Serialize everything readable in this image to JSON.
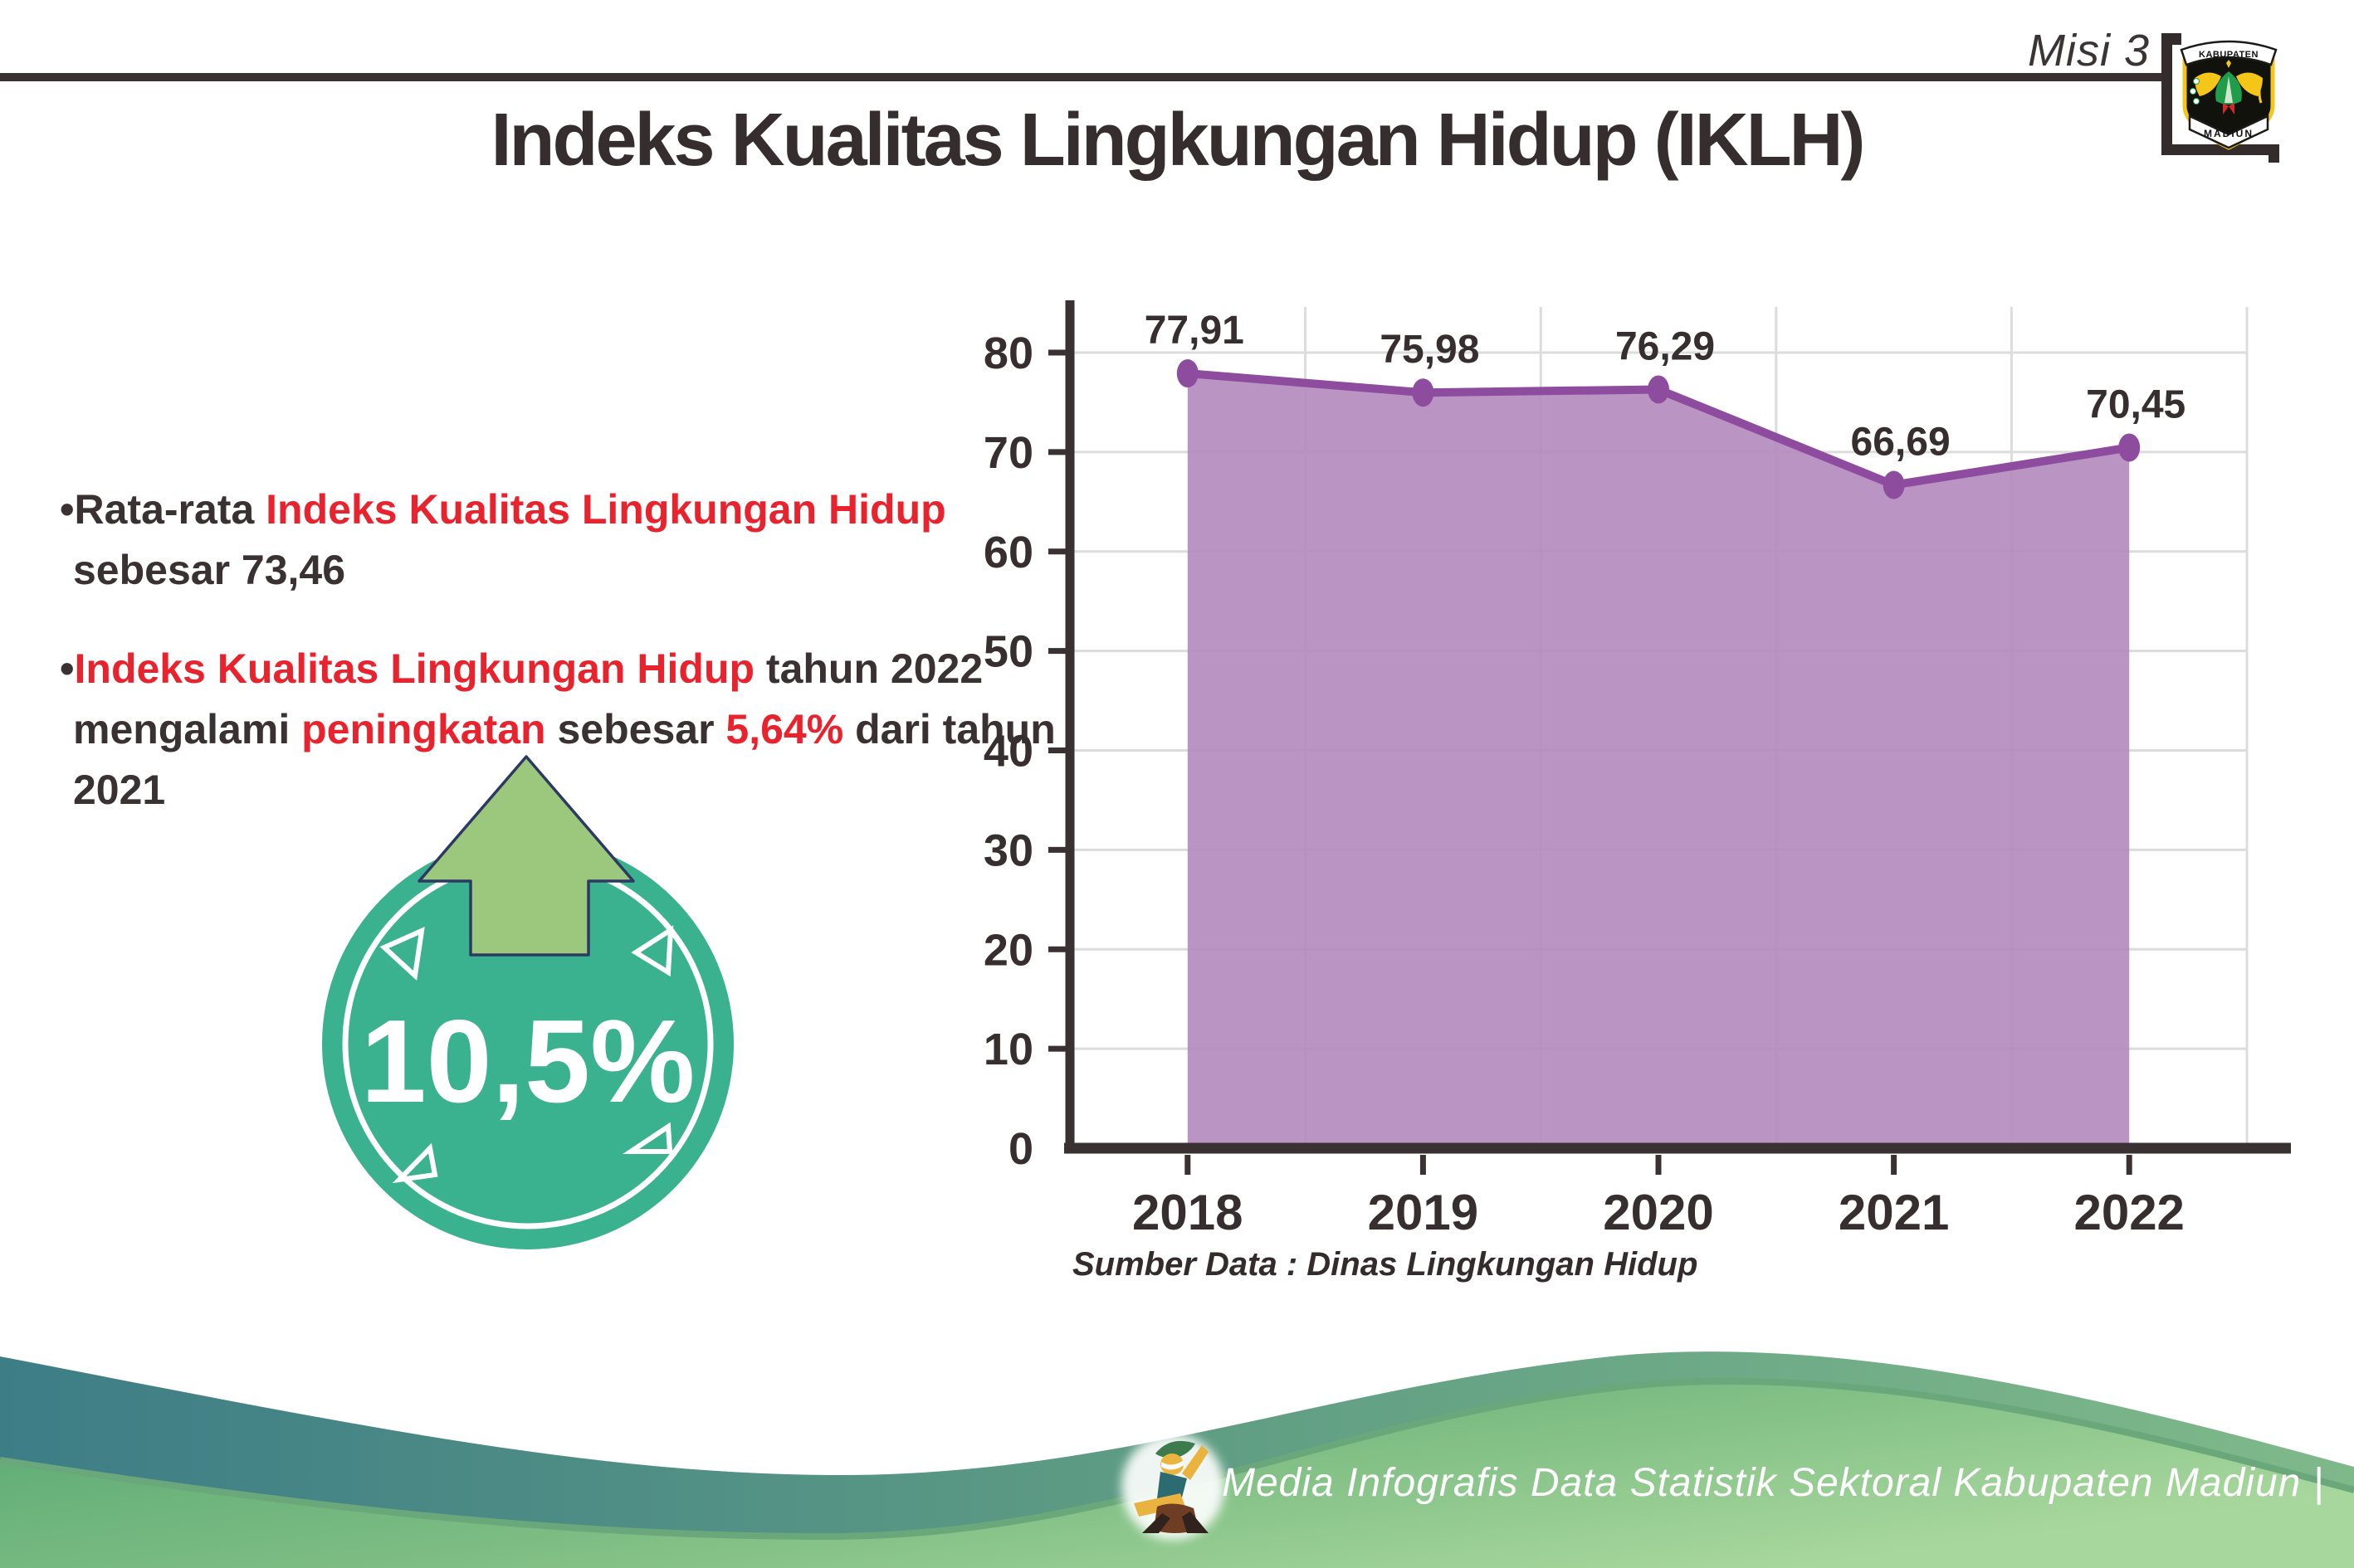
{
  "header": {
    "mission": "Misi 3",
    "seal": {
      "top_text": "KABUPATEN",
      "bottom_text": "MADIUN"
    }
  },
  "title": "Indeks Kualitas Lingkungan Hidup (IKLH)",
  "bullets": {
    "b1_bullet": "•",
    "b1_pre": "Rata-rata ",
    "b1_red": "Indeks Kualitas Lingkungan Hidup",
    "b1_post": " sebesar 73,46",
    "b2_bullet": "•",
    "b2_red1": "Indeks Kualitas Lingkungan Hidup",
    "b2_mid1": " tahun 2022 mengalami ",
    "b2_red2": "peningkatan",
    "b2_mid2": " sebesar ",
    "b2_red3": "5,64%",
    "b2_post": " dari tahun 2021"
  },
  "badge": {
    "value": "10,5%"
  },
  "chart_data": {
    "type": "area",
    "title": "",
    "categories": [
      "2018",
      "2019",
      "2020",
      "2021",
      "2022"
    ],
    "values": [
      77.91,
      75.98,
      76.29,
      66.69,
      70.45
    ],
    "value_labels": [
      "77,91",
      "75,98",
      "76,29",
      "66,69",
      "70,45"
    ],
    "y_ticks": [
      0,
      10,
      20,
      30,
      40,
      50,
      60,
      70,
      80
    ],
    "ylim": [
      0,
      87
    ],
    "grid": true,
    "legend": "none",
    "xlabel": "",
    "ylabel": "",
    "source": "Sumber Data : Dinas Lingkungan Hidup",
    "colors": {
      "line": "#8e4c9e",
      "fill": "#b389be",
      "axis": "#3a3132",
      "grid": "#dcdcdc",
      "label": "#362e2f"
    }
  },
  "footer": {
    "credit": "Media Infografis Data Statistik Sektoral Kabupaten Madiun |"
  },
  "palette": {
    "accent_red": "#e8232e",
    "badge_teal": "#3bb28f",
    "arrow_green": "#9cc87e",
    "arrow_outline_navy": "#2c3a63",
    "band_teal": "#3d7d86",
    "footer_green": "#55a673",
    "footer_green_light": "#a8d79d",
    "ink": "#362e2f"
  }
}
